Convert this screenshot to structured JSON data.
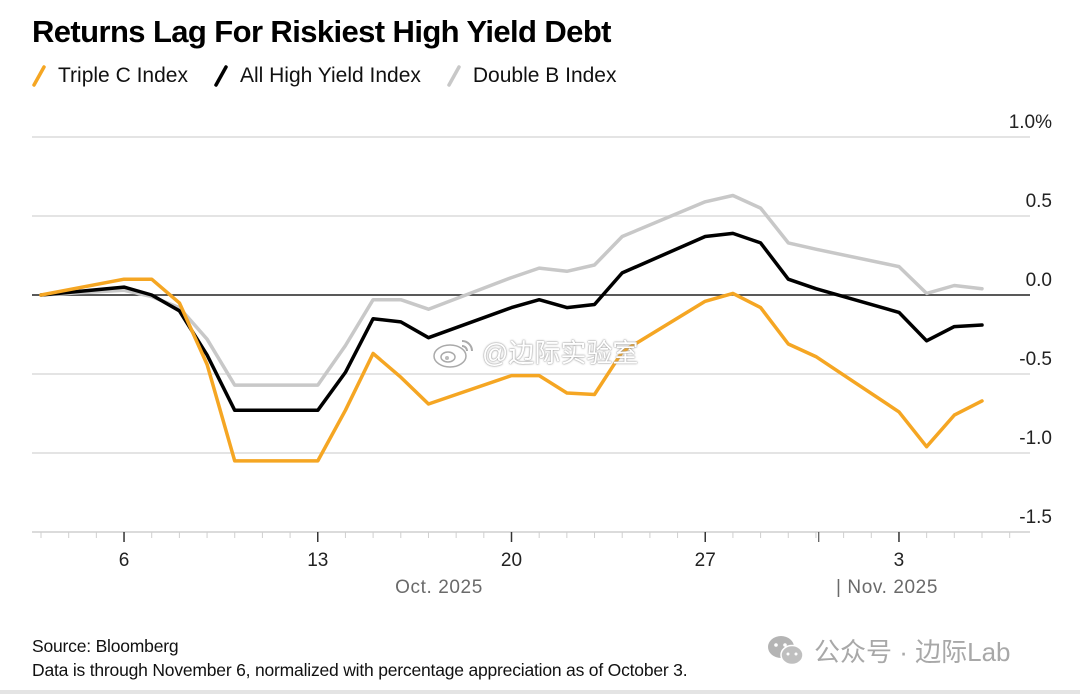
{
  "header": {
    "title": "Returns Lag For Riskiest High Yield Debt"
  },
  "legend": [
    {
      "label": "Triple C Index",
      "color": "#f5a623"
    },
    {
      "label": "All High Yield Index",
      "color": "#000000"
    },
    {
      "label": "Double B Index",
      "color": "#c8c8c8"
    }
  ],
  "footer": {
    "source": "Source: Bloomberg",
    "note": "Data is through November 6, normalized with percentage appreciation as of October 3."
  },
  "watermarks": {
    "weibo": "@边际实验室",
    "wechat": "公众号 · 边际Lab"
  },
  "chart_data": {
    "type": "line",
    "title": "Returns Lag For Riskiest High Yield Debt",
    "xlabel": "",
    "ylabel": "",
    "y_unit": "%",
    "ylim": [
      -1.5,
      1.0
    ],
    "yticks": [
      1.0,
      0.5,
      0.0,
      -0.5,
      -1.0,
      -1.5
    ],
    "ytick_labels": [
      "1.0%",
      "0.5",
      "0.0",
      "-0.5",
      "-1.0",
      "-1.5"
    ],
    "y_axis_position": "right",
    "grid": true,
    "legend_position": "top-left",
    "x_day_offsets": [
      0,
      3,
      4,
      5,
      6,
      7,
      10,
      11,
      12,
      13,
      14,
      17,
      18,
      19,
      20,
      21,
      24,
      25,
      26,
      27,
      28,
      31,
      32,
      33,
      34
    ],
    "x": [
      "Oct 3",
      "Oct 6",
      "Oct 7",
      "Oct 8",
      "Oct 9",
      "Oct 10",
      "Oct 13",
      "Oct 14",
      "Oct 15",
      "Oct 16",
      "Oct 17",
      "Oct 20",
      "Oct 21",
      "Oct 22",
      "Oct 23",
      "Oct 24",
      "Oct 27",
      "Oct 28",
      "Oct 29",
      "Oct 30",
      "Oct 31",
      "Nov 3",
      "Nov 4",
      "Nov 5",
      "Nov 6"
    ],
    "xticks": [
      {
        "label": "6",
        "day_offset": 3
      },
      {
        "label": "13",
        "day_offset": 10
      },
      {
        "label": "20",
        "day_offset": 17
      },
      {
        "label": "27",
        "day_offset": 24
      },
      {
        "label": "3",
        "day_offset": 31
      }
    ],
    "x_day_range": [
      -3,
      35
    ],
    "month_labels": [
      {
        "label": "Oct. 2025",
        "day_offset": 14.5,
        "divider": false
      },
      {
        "label": "| Nov. 2025",
        "day_offset": 28.5,
        "divider": true
      }
    ],
    "series": [
      {
        "name": "Double B Index",
        "color": "#c8c8c8",
        "values": [
          0.0,
          0.03,
          -0.01,
          -0.08,
          -0.28,
          -0.57,
          -0.57,
          -0.32,
          -0.03,
          -0.03,
          -0.09,
          0.11,
          0.17,
          0.15,
          0.19,
          0.37,
          0.59,
          0.63,
          0.55,
          0.33,
          0.29,
          0.18,
          0.01,
          0.06,
          0.04
        ]
      },
      {
        "name": "All High Yield Index",
        "color": "#000000",
        "values": [
          0.0,
          0.05,
          0.0,
          -0.1,
          -0.38,
          -0.73,
          -0.73,
          -0.49,
          -0.15,
          -0.17,
          -0.27,
          -0.08,
          -0.03,
          -0.08,
          -0.06,
          0.14,
          0.37,
          0.39,
          0.33,
          0.1,
          0.04,
          -0.11,
          -0.29,
          -0.2,
          -0.19
        ]
      },
      {
        "name": "Triple C Index",
        "color": "#f5a623",
        "values": [
          0.0,
          0.1,
          0.1,
          -0.05,
          -0.44,
          -1.05,
          -1.05,
          -0.73,
          -0.37,
          -0.52,
          -0.69,
          -0.51,
          -0.51,
          -0.62,
          -0.63,
          -0.36,
          -0.04,
          0.01,
          -0.08,
          -0.31,
          -0.39,
          -0.74,
          -0.96,
          -0.76,
          -0.67
        ]
      }
    ]
  }
}
